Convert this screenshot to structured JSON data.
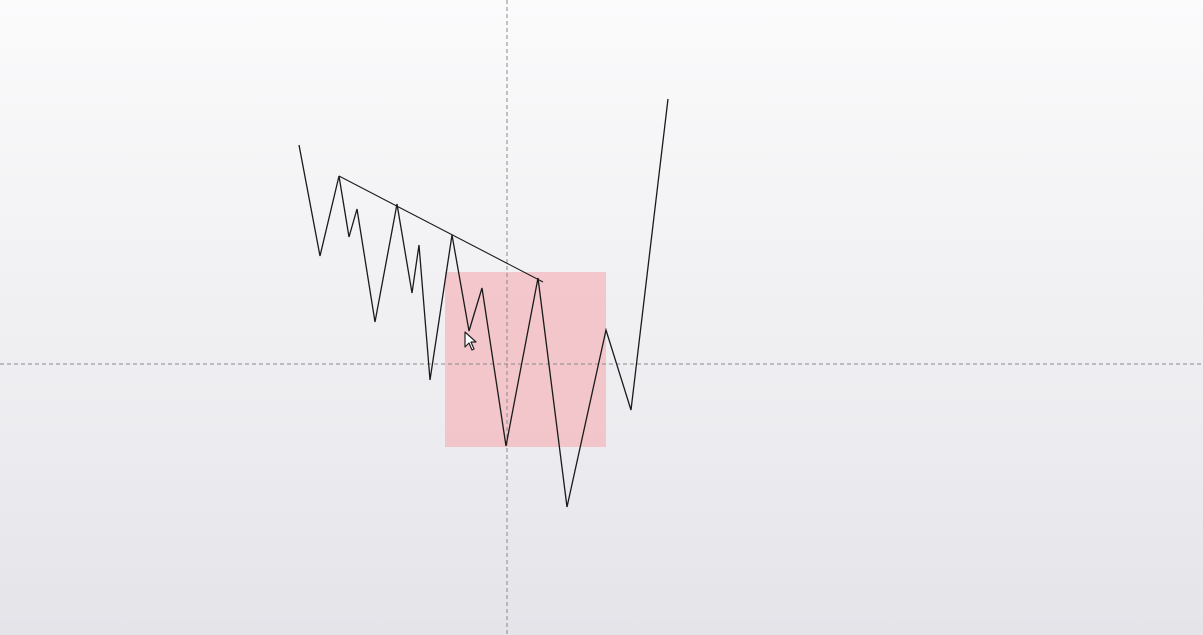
{
  "canvas": {
    "background_top": "#fbfbfc",
    "background_bottom": "#e4e4e9"
  },
  "price_line": {
    "color": "#1a1a1a"
  },
  "trend_line": {
    "color": "#1a1a1a"
  },
  "zone_rectangle": {
    "fill": "#f3b8bd",
    "opacity": 0.75
  },
  "crosshair": {
    "color": "#8a8a8a",
    "style": "dashed"
  },
  "cursor": {
    "icon": "arrow-cursor-icon"
  }
}
